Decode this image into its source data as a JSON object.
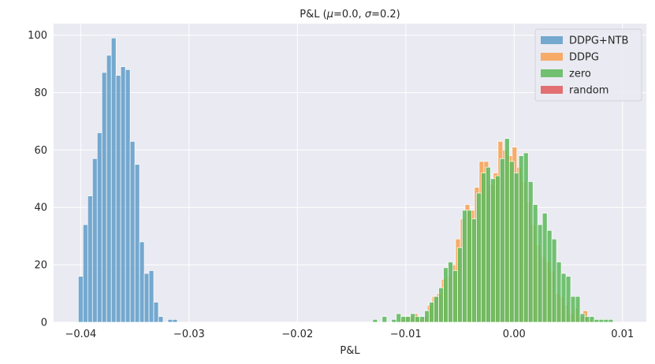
{
  "chart_data": {
    "type": "histogram",
    "title": "P&L (μ=0.0, σ=0.2)",
    "title_parts": {
      "prefix": "P&L (",
      "mu_symbol": "μ",
      "mu_value": "=0.0, ",
      "sigma_symbol": "σ",
      "sigma_value": "=0.2)"
    },
    "xlabel": "P&L",
    "ylabel": "",
    "xlim": [
      -0.0425,
      0.0122
    ],
    "ylim": [
      0,
      104
    ],
    "xticks": [
      -0.04,
      -0.03,
      -0.02,
      -0.01,
      0.0,
      0.01
    ],
    "xtick_labels": [
      "−0.04",
      "−0.03",
      "−0.02",
      "−0.01",
      "0.00",
      "0.01"
    ],
    "yticks": [
      0,
      20,
      40,
      60,
      80,
      100
    ],
    "ytick_labels": [
      "0",
      "20",
      "40",
      "60",
      "80",
      "100"
    ],
    "grid": true,
    "legend_position": "top-right",
    "series": [
      {
        "name": "DDPG+NTB",
        "color": "#4c92c3",
        "opacity": 0.75,
        "bin_start": -0.04022,
        "bin_width": 0.000435,
        "counts": [
          16,
          34,
          44,
          57,
          66,
          87,
          93,
          99,
          86,
          89,
          88,
          63,
          55,
          28,
          17,
          18,
          7,
          2,
          0,
          1,
          1
        ]
      },
      {
        "name": "DDPG",
        "color": "#f8a050",
        "opacity": 0.85,
        "bin_start": -0.01062,
        "bin_width": 0.000435,
        "counts": [
          1,
          2,
          2,
          3,
          1,
          2,
          6,
          9,
          10,
          15,
          16,
          20,
          29,
          36,
          41,
          39,
          47,
          56,
          56,
          48,
          52,
          63,
          60,
          58,
          61,
          54,
          49,
          42,
          34,
          27,
          23,
          21,
          18,
          10,
          9,
          6,
          3,
          5,
          2,
          4,
          1
        ]
      },
      {
        "name": "zero",
        "color": "#5cb85c",
        "opacity": 0.85,
        "bin_start": -0.01305,
        "bin_width": 0.000435,
        "counts": [
          1,
          0,
          2,
          0,
          1,
          3,
          2,
          2,
          3,
          2,
          2,
          4,
          7,
          9,
          12,
          19,
          21,
          18,
          26,
          39,
          39,
          36,
          45,
          52,
          54,
          50,
          51,
          57,
          64,
          56,
          52,
          58,
          59,
          49,
          41,
          34,
          38,
          32,
          29,
          21,
          17,
          16,
          9,
          9,
          3,
          2,
          2,
          1,
          1,
          1,
          1
        ]
      },
      {
        "name": "random",
        "color": "#e05050",
        "opacity": 0.8,
        "bin_start": 0,
        "bin_width": 0.000435,
        "counts": []
      }
    ]
  }
}
